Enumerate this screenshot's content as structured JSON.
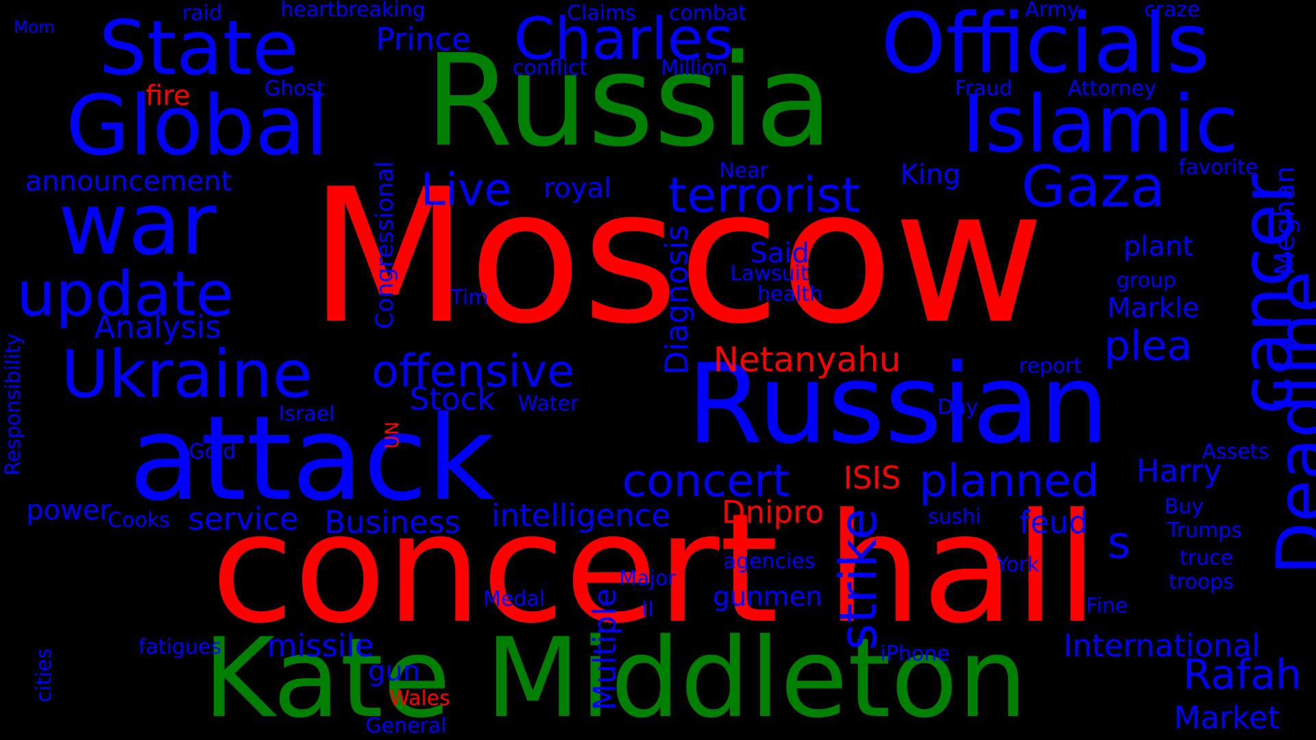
{
  "colors": {
    "background": "#000000",
    "red": "#ff0000",
    "green": "#008000",
    "blue": "#0000ff"
  },
  "words": [
    {
      "text": "Moscow",
      "color": "red"
    },
    {
      "text": "concert hall",
      "color": "red"
    },
    {
      "text": "Russia",
      "color": "green"
    },
    {
      "text": "Kate Middleton",
      "color": "green"
    },
    {
      "text": "attack",
      "color": "blue"
    },
    {
      "text": "Russian",
      "color": "blue"
    },
    {
      "text": "Officials",
      "color": "blue"
    },
    {
      "text": "Islamic",
      "color": "blue"
    },
    {
      "text": "State",
      "color": "blue"
    },
    {
      "text": "Global",
      "color": "blue"
    },
    {
      "text": "war",
      "color": "blue"
    },
    {
      "text": "Charles",
      "color": "blue"
    },
    {
      "text": "Ukraine",
      "color": "blue"
    },
    {
      "text": "update",
      "color": "blue"
    },
    {
      "text": "Gaza",
      "color": "blue"
    },
    {
      "text": "cancer",
      "color": "blue"
    },
    {
      "text": "Deadline",
      "color": "blue"
    },
    {
      "text": "terrorist",
      "color": "blue"
    },
    {
      "text": "offensive",
      "color": "blue"
    },
    {
      "text": "planned",
      "color": "blue"
    },
    {
      "text": "Live",
      "color": "blue"
    },
    {
      "text": "plea",
      "color": "blue"
    },
    {
      "text": "concert",
      "color": "blue"
    },
    {
      "text": "Rafah",
      "color": "blue"
    },
    {
      "text": "strike",
      "color": "blue"
    },
    {
      "text": "s",
      "color": "blue"
    },
    {
      "text": "Netanyahu",
      "color": "red"
    },
    {
      "text": "Prince",
      "color": "blue"
    },
    {
      "text": "Analysis",
      "color": "blue"
    },
    {
      "text": "announcement",
      "color": "blue"
    },
    {
      "text": "intelligence",
      "color": "blue"
    },
    {
      "text": "Business",
      "color": "blue"
    },
    {
      "text": "International",
      "color": "blue"
    },
    {
      "text": "Diagnosis",
      "color": "blue"
    },
    {
      "text": "Multiple",
      "color": "blue"
    },
    {
      "text": "Markle",
      "color": "blue"
    },
    {
      "text": "plant",
      "color": "blue"
    },
    {
      "text": "Harry",
      "color": "blue"
    },
    {
      "text": "Market",
      "color": "blue"
    },
    {
      "text": "missile",
      "color": "blue"
    },
    {
      "text": "gunmen",
      "color": "blue"
    },
    {
      "text": "Dnipro",
      "color": "red"
    },
    {
      "text": "ISIS",
      "color": "red"
    },
    {
      "text": "Stock",
      "color": "blue"
    },
    {
      "text": "service",
      "color": "blue"
    },
    {
      "text": "feud",
      "color": "blue"
    },
    {
      "text": "royal",
      "color": "blue"
    },
    {
      "text": "King",
      "color": "blue"
    },
    {
      "text": "Said",
      "color": "blue"
    },
    {
      "text": "Meghan",
      "color": "blue"
    },
    {
      "text": "fire",
      "color": "red"
    },
    {
      "text": "power",
      "color": "blue"
    },
    {
      "text": "gun",
      "color": "blue"
    },
    {
      "text": "Congressional",
      "color": "blue"
    },
    {
      "text": "Responsibility",
      "color": "blue"
    },
    {
      "text": "heartbreaking",
      "color": "blue"
    },
    {
      "text": "Claims",
      "color": "blue"
    },
    {
      "text": "combat",
      "color": "blue"
    },
    {
      "text": "Army",
      "color": "blue"
    },
    {
      "text": "craze",
      "color": "blue"
    },
    {
      "text": "raid",
      "color": "blue"
    },
    {
      "text": "Mom",
      "color": "blue"
    },
    {
      "text": "conflict",
      "color": "blue"
    },
    {
      "text": "Million",
      "color": "blue"
    },
    {
      "text": "Ghost",
      "color": "blue"
    },
    {
      "text": "Fraud",
      "color": "blue"
    },
    {
      "text": "Attorney",
      "color": "blue"
    },
    {
      "text": "favorite",
      "color": "blue"
    },
    {
      "text": "Near",
      "color": "blue"
    },
    {
      "text": "Lawsuit",
      "color": "blue"
    },
    {
      "text": "health",
      "color": "blue"
    },
    {
      "text": "group",
      "color": "blue"
    },
    {
      "text": "Tim",
      "color": "blue"
    },
    {
      "text": "report",
      "color": "blue"
    },
    {
      "text": "Israel",
      "color": "blue"
    },
    {
      "text": "Water",
      "color": "blue"
    },
    {
      "text": "Day",
      "color": "blue"
    },
    {
      "text": "Gold",
      "color": "blue"
    },
    {
      "text": "UN",
      "color": "red"
    },
    {
      "text": "Assets",
      "color": "blue"
    },
    {
      "text": "Cooks",
      "color": "blue"
    },
    {
      "text": "sushi",
      "color": "blue"
    },
    {
      "text": "Buy",
      "color": "blue"
    },
    {
      "text": "Trumps",
      "color": "blue"
    },
    {
      "text": "truce",
      "color": "blue"
    },
    {
      "text": "agencies",
      "color": "blue"
    },
    {
      "text": "York",
      "color": "blue"
    },
    {
      "text": "troops",
      "color": "blue"
    },
    {
      "text": "Major",
      "color": "blue"
    },
    {
      "text": "Medal",
      "color": "blue"
    },
    {
      "text": "II",
      "color": "blue"
    },
    {
      "text": "Fine",
      "color": "blue"
    },
    {
      "text": "fatigues",
      "color": "blue"
    },
    {
      "text": "iPhone",
      "color": "blue"
    },
    {
      "text": "cities",
      "color": "blue"
    },
    {
      "text": "Wales",
      "color": "red"
    },
    {
      "text": "General",
      "color": "blue"
    }
  ]
}
